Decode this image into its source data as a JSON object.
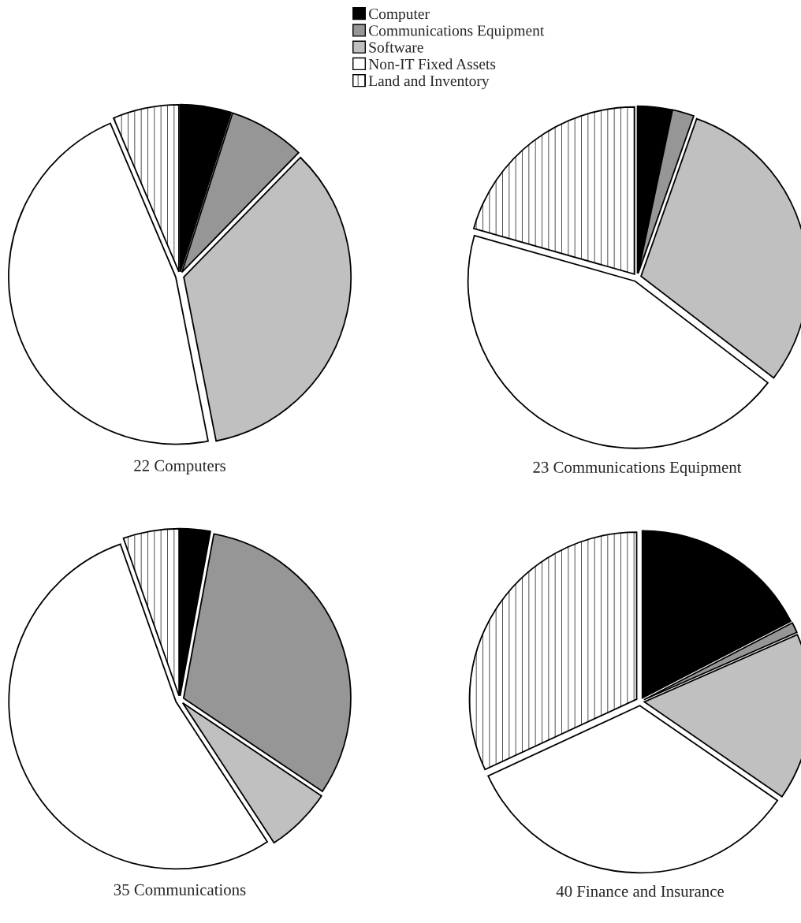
{
  "chart_data": [
    {
      "type": "pie",
      "title": "22 Computers",
      "categories": [
        "Computer",
        "Communications Equipment",
        "Software",
        "Non-IT Fixed Assets",
        "Land and Inventory"
      ],
      "values": [
        4.9,
        7.4,
        34.6,
        46.7,
        6.4
      ],
      "colors": [
        "#000000",
        "#969696",
        "#c0c0c0",
        "#ffffff",
        "#ffffff"
      ],
      "legend": "top right"
    },
    {
      "type": "pie",
      "title": "23 Communications Equipment",
      "categories": [
        null,
        null,
        null,
        null,
        null
      ],
      "values": [
        3.3,
        2.1,
        30.0,
        44.0,
        20.6
      ],
      "colors": [
        "#000000",
        "#969696",
        "#c0c0c0",
        "#ffffff",
        "#ffffff"
      ]
    },
    {
      "type": "pie",
      "title": "35 Communications",
      "categories": [
        null,
        null,
        null,
        null,
        null
      ],
      "values": [
        2.9,
        31.5,
        6.4,
        53.8,
        5.4
      ],
      "colors": [
        "#000000",
        "#969696",
        "#c0c0c0",
        "#ffffff",
        "#ffffff"
      ]
    },
    {
      "type": "pie",
      "title": "40 Finance and Insurance",
      "categories": [
        null,
        null,
        null,
        null,
        null
      ],
      "values": [
        17.4,
        1.0,
        16.2,
        33.5,
        31.9
      ],
      "colors": [
        "#000000",
        "#969696",
        "#c0c0c0",
        "#ffffff",
        "#ffffff"
      ]
    }
  ]
}
